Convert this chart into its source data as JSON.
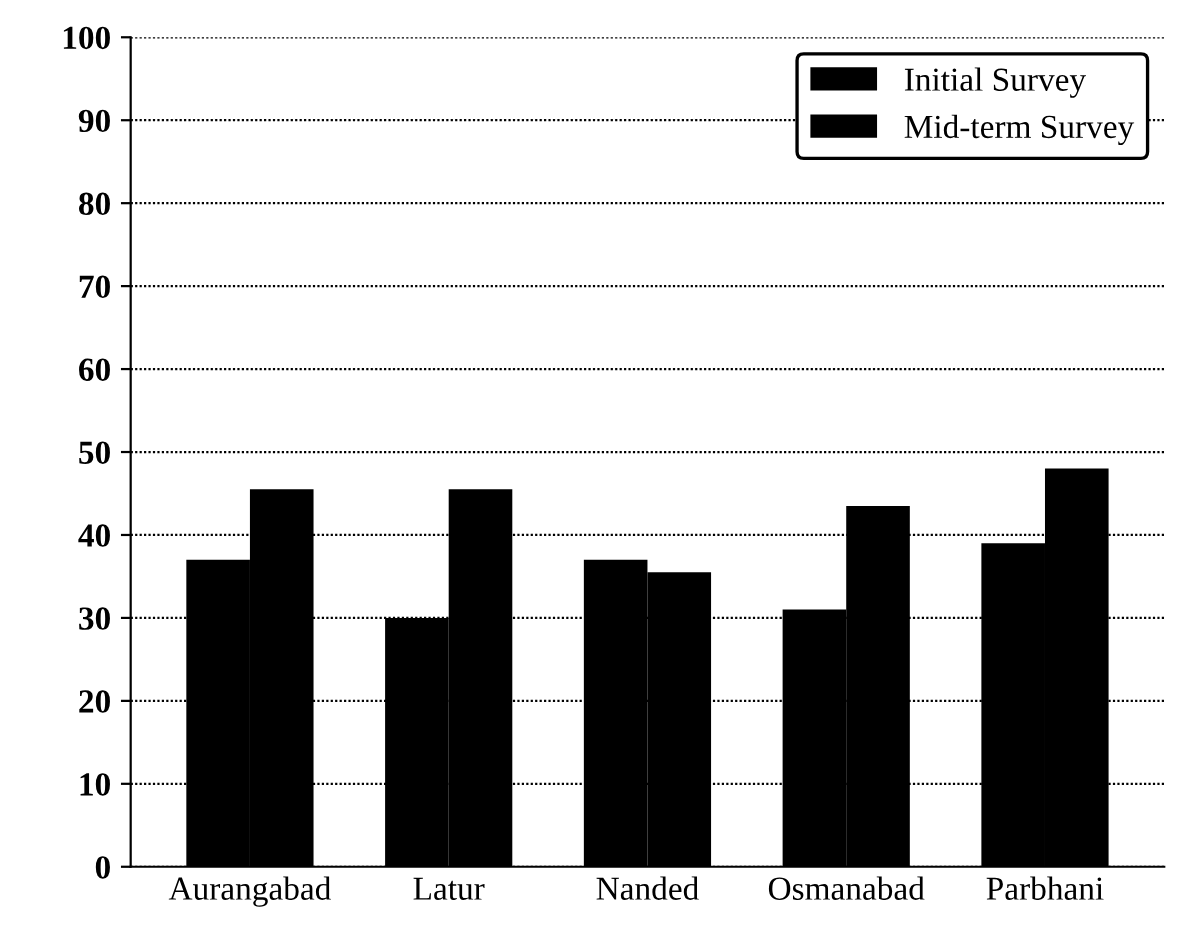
{
  "chart_data": {
    "type": "bar",
    "categories": [
      "Aurangabad",
      "Latur",
      "Nanded",
      "Osmanabad",
      "Parbhani"
    ],
    "series": [
      {
        "name": "Initial Survey",
        "color": "#000000",
        "values": [
          37,
          30,
          37,
          31,
          39
        ]
      },
      {
        "name": "Mid-term Survey",
        "color": "#000000",
        "values": [
          45.5,
          45.5,
          35.5,
          43.5,
          48
        ]
      }
    ],
    "ylim": [
      0,
      100
    ],
    "yticks": [
      0,
      10,
      20,
      30,
      40,
      50,
      60,
      70,
      80,
      90,
      100
    ],
    "grid": "y",
    "legend": "top right"
  }
}
